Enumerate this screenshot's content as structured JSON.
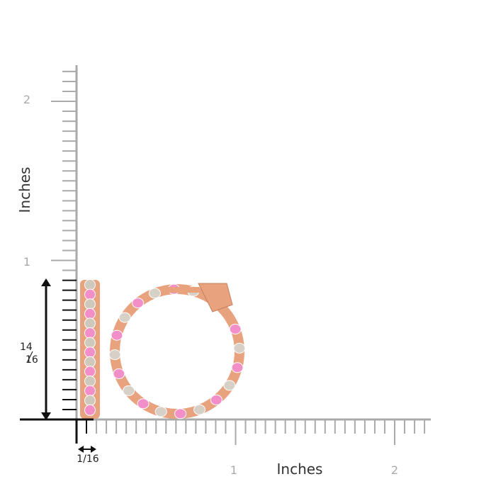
{
  "y_axis": {
    "label": "Inches",
    "ticks": [
      "1",
      "2"
    ]
  },
  "x_axis": {
    "label": "Inches",
    "ticks": [
      "1",
      "2"
    ]
  },
  "dimensions": {
    "height": {
      "numerator": "14",
      "denominator": "16"
    },
    "width": "1/16"
  }
}
